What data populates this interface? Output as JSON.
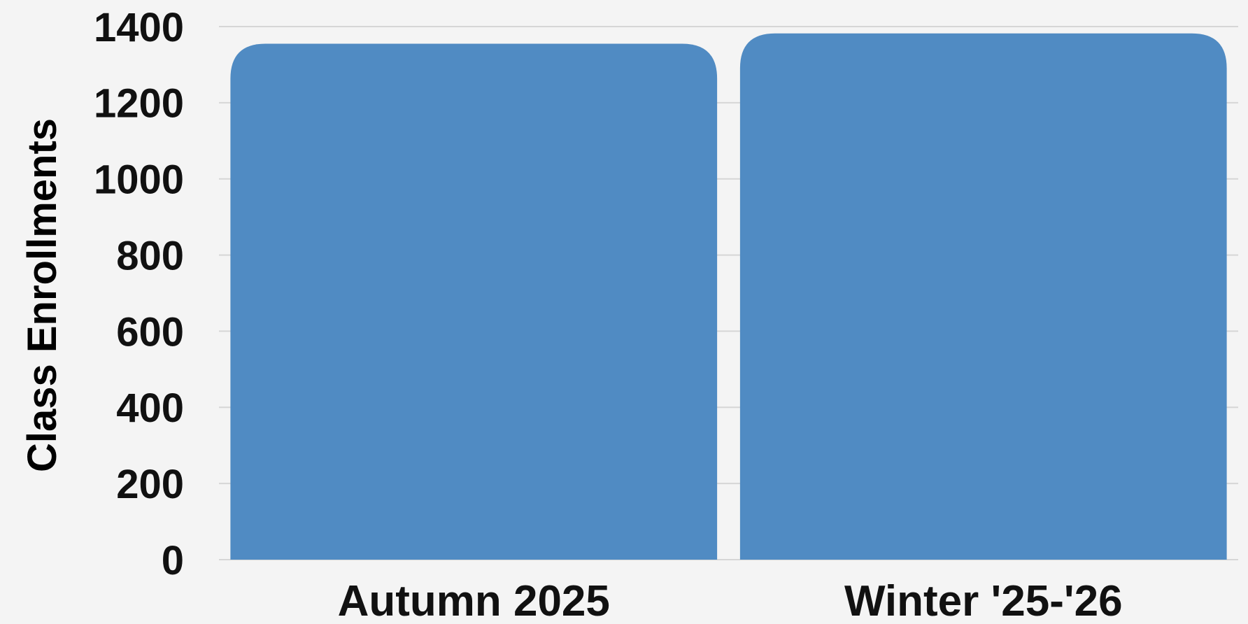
{
  "chart_data": {
    "type": "bar",
    "categories": [
      "Autumn 2025",
      "Winter '25-'26"
    ],
    "values": [
      1355,
      1382
    ],
    "title": "",
    "xlabel": "",
    "ylabel": "Class Enrollments",
    "ylim": [
      0,
      1400
    ],
    "yticks": [
      0,
      200,
      400,
      600,
      800,
      1000,
      1200,
      1400
    ],
    "grid": true,
    "legend": "none",
    "bar_color": "#508bc3",
    "background_color": "#f4f4f4"
  }
}
